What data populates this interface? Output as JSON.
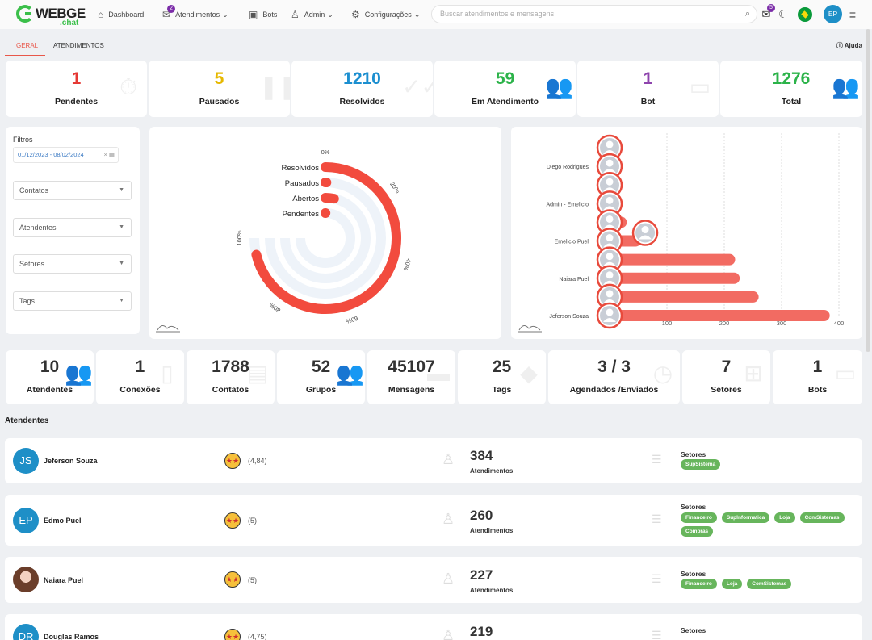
{
  "logo": {
    "part1": "WEBGE",
    "part2": ".chat"
  },
  "nav": {
    "dashboard": "Dashboard",
    "atendimentos": "Atendimentos",
    "atendimentos_badge": "2",
    "bots": "Bots",
    "admin": "Admin",
    "configuracoes": "Configurações"
  },
  "search": {
    "placeholder": "Buscar atendimentos e mensagens"
  },
  "header_right": {
    "notification_badge": "5",
    "user_initials": "EP"
  },
  "tabs": [
    {
      "label": "GERAL",
      "active": true
    },
    {
      "label": "ATENDIMENTOS",
      "active": false
    }
  ],
  "help_label": "Ajuda",
  "top_stats": [
    {
      "value": "1",
      "label": "Pendentes",
      "color": "#e53935"
    },
    {
      "value": "5",
      "label": "Pausados",
      "color": "#e6b800"
    },
    {
      "value": "1210",
      "label": "Resolvidos",
      "color": "#1c8fd0"
    },
    {
      "value": "59",
      "label": "Em Atendimento",
      "color": "#2cb34a"
    },
    {
      "value": "1",
      "label": "Bot",
      "color": "#8e44ad"
    },
    {
      "value": "1276",
      "label": "Total",
      "color": "#2cb34a"
    }
  ],
  "filters": {
    "title": "Filtros",
    "date_range": "01/12/2023 - 08/02/2024",
    "selects": [
      "Contatos",
      "Atendentes",
      "Setores",
      "Tags"
    ]
  },
  "radial_chart": {
    "labels": [
      "Resolvidos",
      "Pausados",
      "Abertos",
      "Pendentes"
    ],
    "ticks": [
      "0%",
      "20%",
      "40%",
      "60%",
      "80%",
      "100%"
    ],
    "fractions": [
      0.95,
      0.004,
      0.046,
      0.001
    ],
    "color": "#f24b3e",
    "track_color": "#eef3f9"
  },
  "chart_data": {
    "type": "bar",
    "orientation": "horizontal",
    "categories": [
      "",
      "Diego Rodrigues",
      "",
      "Admin - Emelicio",
      "",
      "Emelicio Puel",
      "",
      "Naiara Puel",
      "",
      "Jeferson Souza"
    ],
    "values": [
      0,
      0,
      0,
      0,
      30,
      55,
      219,
      227,
      260,
      384
    ],
    "xlim": [
      0,
      400
    ],
    "xticks": [
      "0",
      "100",
      "200",
      "300",
      "400"
    ],
    "color": "#f26b62"
  },
  "bottom_stats": [
    {
      "value": "10",
      "label": "Atendentes"
    },
    {
      "value": "1",
      "label": "Conexões"
    },
    {
      "value": "1788",
      "label": "Contatos"
    },
    {
      "value": "52",
      "label": "Grupos"
    },
    {
      "value": "45107",
      "label": "Mensagens"
    },
    {
      "value": "25",
      "label": "Tags"
    },
    {
      "value": "3 / 3",
      "label": "Agendados /Enviados"
    },
    {
      "value": "7",
      "label": "Setores"
    },
    {
      "value": "1",
      "label": "Bots"
    }
  ],
  "attendants_title": "Atendentes",
  "attendants": [
    {
      "initials": "JS",
      "name": "Jeferson Souza",
      "rating": "(4,84)",
      "count": "384",
      "count_label": "Atendimentos",
      "sectors_title": "Setores",
      "sectors": [
        "SupSistema"
      ]
    },
    {
      "initials": "EP",
      "name": "Edmo Puel",
      "rating": "(5)",
      "count": "260",
      "count_label": "Atendimentos",
      "sectors_title": "Setores",
      "sectors": [
        "Financeiro",
        "SupInformatica",
        "Loja",
        "ComSistemas",
        "Compras"
      ]
    },
    {
      "initials": "",
      "name": "Naiara Puel",
      "rating": "(5)",
      "count": "227",
      "count_label": "Atendimentos",
      "sectors_title": "Setores",
      "sectors": [
        "Financeiro",
        "Loja",
        "ComSistemas"
      ]
    },
    {
      "initials": "DR",
      "name": "Douglas Ramos",
      "rating": "(4,75)",
      "count": "219",
      "count_label": "Atendimentos",
      "sectors_title": "Setores",
      "sectors": []
    }
  ]
}
